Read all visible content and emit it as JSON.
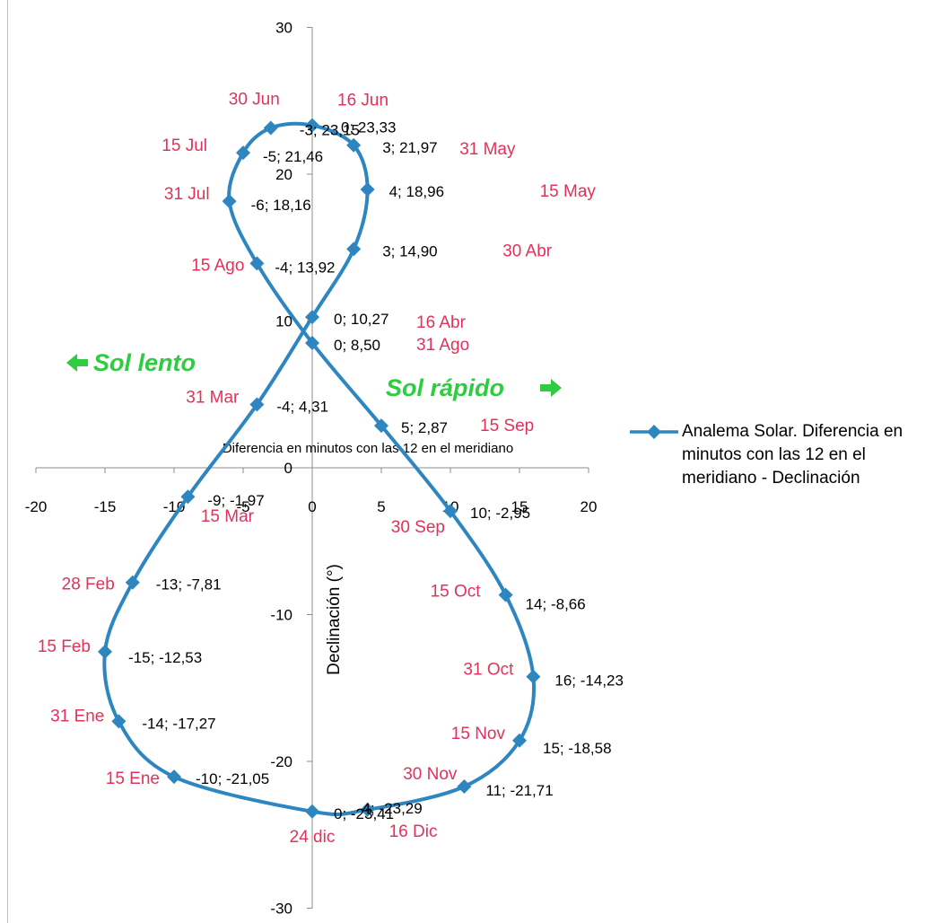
{
  "chart_data": {
    "type": "scatter",
    "x_title": "Diferencia en minutos con las 12 en el meridiano",
    "y_title": "Declinación (°)",
    "xlim": [
      -20,
      20
    ],
    "ylim": [
      -30,
      30
    ],
    "x_ticks": [
      "-20",
      "-15",
      "-10",
      "-5",
      "0",
      "5",
      "10",
      "15",
      "20"
    ],
    "y_ticks": [
      "30",
      "20",
      "10",
      "0",
      "-10",
      "-20",
      "-30"
    ],
    "grid": false,
    "legend_position": "right",
    "series": [
      {
        "name": "Analema Solar. Diferencia en minutos con las 12 en el meridiano - Declinación",
        "color": "#2e86c1",
        "marker": "diamond",
        "points": [
          {
            "x": 0,
            "y": 10.27,
            "label": "0; 10,27",
            "date": "16 Abr"
          },
          {
            "x": 3,
            "y": 14.9,
            "label": "3; 14,90",
            "date": "30 Abr"
          },
          {
            "x": 4,
            "y": 18.96,
            "label": "4; 18,96",
            "date": "15 May"
          },
          {
            "x": 3,
            "y": 21.97,
            "label": "3; 21,97",
            "date": "31 May"
          },
          {
            "x": 0,
            "y": 23.33,
            "label": "0; 23,33",
            "date": "16 Jun"
          },
          {
            "x": -3,
            "y": 23.15,
            "label": "-3; 23,15",
            "date": "30 Jun"
          },
          {
            "x": -5,
            "y": 21.46,
            "label": "-5; 21,46",
            "date": "15 Jul"
          },
          {
            "x": -6,
            "y": 18.16,
            "label": "-6; 18,16",
            "date": "31 Jul"
          },
          {
            "x": -4,
            "y": 13.92,
            "label": "-4; 13,92",
            "date": "15 Ago"
          },
          {
            "x": 0,
            "y": 8.5,
            "label": "0; 8,50",
            "date": "31 Ago"
          },
          {
            "x": 5,
            "y": 2.87,
            "label": "5; 2,87",
            "date": "15 Sep"
          },
          {
            "x": 10,
            "y": -2.95,
            "label": "10; -2,95",
            "date": "30 Sep"
          },
          {
            "x": 14,
            "y": -8.66,
            "label": "14; -8,66",
            "date": "15 Oct"
          },
          {
            "x": 16,
            "y": -14.23,
            "label": "16; -14,23",
            "date": "31 Oct"
          },
          {
            "x": 15,
            "y": -18.58,
            "label": "15; -18,58",
            "date": "15 Nov"
          },
          {
            "x": 11,
            "y": -21.71,
            "label": "11; -21,71",
            "date": "30 Nov"
          },
          {
            "x": 4,
            "y": -23.29,
            "label": "4; -23,29",
            "date": "16 Dic"
          },
          {
            "x": 0,
            "y": -23.41,
            "label": "0; -23,41",
            "date": "24 dic"
          },
          {
            "x": -10,
            "y": -21.05,
            "label": "-10; -21,05",
            "date": "15 Ene"
          },
          {
            "x": -14,
            "y": -17.27,
            "label": "-14; -17,27",
            "date": "31 Ene"
          },
          {
            "x": -15,
            "y": -12.53,
            "label": "-15; -12,53",
            "date": "15 Feb"
          },
          {
            "x": -13,
            "y": -7.81,
            "label": "-13; -7,81",
            "date": "28 Feb"
          },
          {
            "x": -9,
            "y": -1.97,
            "label": "-9; -1,97",
            "date": "15 Mar"
          },
          {
            "x": -4,
            "y": 4.31,
            "label": "-4; 4,31",
            "date": "31 Mar"
          }
        ]
      }
    ],
    "annotations": [
      {
        "text": "Sol lento",
        "arrow": "left",
        "color": "#2ecc40"
      },
      {
        "text": "Sol rápido",
        "arrow": "right",
        "color": "#2ecc40"
      }
    ]
  }
}
